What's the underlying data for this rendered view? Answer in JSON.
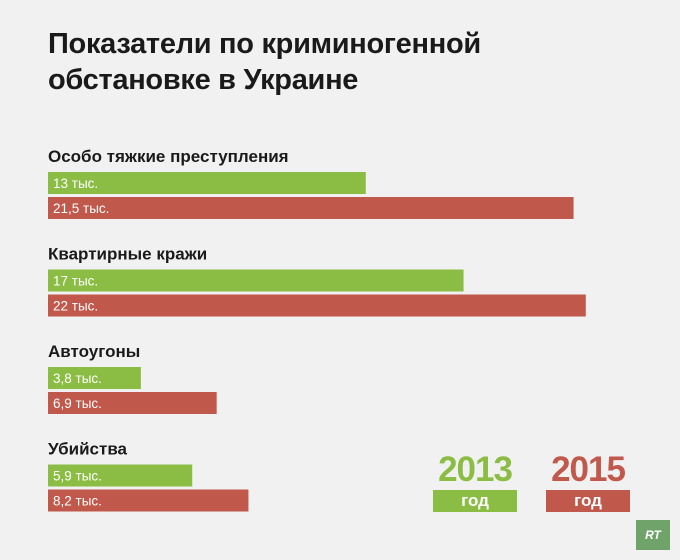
{
  "title_lines": [
    "Показатели по криминогенной",
    "обстановке в Украине"
  ],
  "colors": {
    "y2013": "#8bbd44",
    "y2015": "#c1584c"
  },
  "chart_data": {
    "type": "bar",
    "orientation": "horizontal",
    "categories": [
      "Особо тяжкие преступления",
      "Квартирные кражи",
      "Автоугоны",
      "Убийства"
    ],
    "series": [
      {
        "name": "2013 год",
        "values": [
          13,
          17,
          3.8,
          5.9
        ],
        "labels": [
          "13 тыс.",
          "17 тыс.",
          "3,8 тыс.",
          "5,9 тыс."
        ]
      },
      {
        "name": "2015 год",
        "values": [
          21.5,
          22,
          6.9,
          8.2
        ],
        "labels": [
          "21,5 тыс.",
          "22 тыс.",
          "6,9 тыс.",
          "8,2 тыс."
        ]
      }
    ],
    "unit": "тыс.",
    "xlim": [
      0,
      22.5
    ],
    "grid": false,
    "legend_position": "bottom-right"
  },
  "legend": [
    {
      "year": "2013",
      "unit": "год"
    },
    {
      "year": "2015",
      "unit": "год"
    }
  ],
  "logo_text": "RT"
}
